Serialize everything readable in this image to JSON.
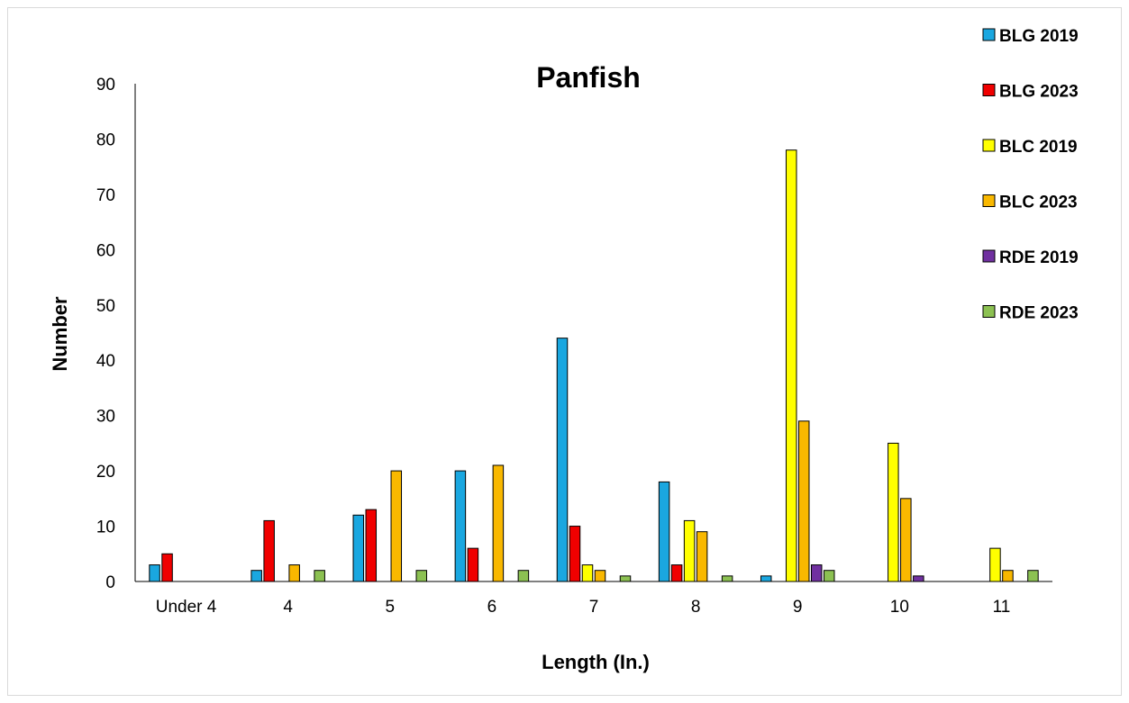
{
  "chart_data": {
    "type": "bar",
    "title": "Panfish",
    "xlabel": "Length (In.)",
    "ylabel": "Number",
    "ylim": [
      0,
      90
    ],
    "yticks": [
      0,
      10,
      20,
      30,
      40,
      50,
      60,
      70,
      80,
      90
    ],
    "grid": false,
    "legend_position": "right",
    "categories": [
      "Under 4",
      "4",
      "5",
      "6",
      "7",
      "8",
      "9",
      "10",
      "11"
    ],
    "series": [
      {
        "name": "BLG 2019",
        "color": "#1aa7e0",
        "values": [
          3,
          2,
          12,
          20,
          44,
          18,
          1,
          0,
          0
        ]
      },
      {
        "name": "BLG 2023",
        "color": "#f00000",
        "values": [
          5,
          11,
          13,
          6,
          10,
          3,
          0,
          0,
          0
        ]
      },
      {
        "name": "BLC 2019",
        "color": "#ffff00",
        "values": [
          0,
          0,
          0,
          0,
          3,
          11,
          78,
          25,
          6
        ]
      },
      {
        "name": "BLC 2023",
        "color": "#f9b800",
        "values": [
          0,
          3,
          20,
          21,
          2,
          9,
          29,
          15,
          2
        ]
      },
      {
        "name": "RDE 2019",
        "color": "#7030a0",
        "values": [
          0,
          0,
          0,
          0,
          0,
          0,
          3,
          1,
          0
        ]
      },
      {
        "name": "RDE 2023",
        "color": "#8cc152",
        "values": [
          0,
          2,
          2,
          2,
          1,
          1,
          2,
          0,
          2
        ]
      }
    ]
  }
}
